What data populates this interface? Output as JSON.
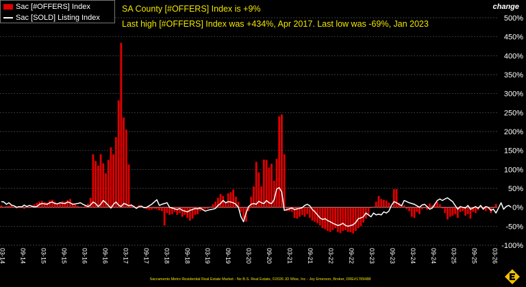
{
  "legend": {
    "offers_label": "Sac [#OFFERS] Index",
    "sold_label": "Sac [SOLD] Listing Index"
  },
  "annotations": {
    "line1": "SA County [#OFFERS] Index is +9%",
    "line2": "Last high [#OFFERS] Index was +434%, Apr 2017. Last low was -69%, Jan 2023"
  },
  "axis_title": "change",
  "footer": "Sacramento Metro Residential Real Estate Market - No B.S. Real Estate, ©2026 JD Wise, Inc - Joy Emerson, Broker, DRE#1789488",
  "colors": {
    "bars": "#e00000",
    "line": "#ffffff",
    "annotation": "#f2e600",
    "background": "#000000"
  },
  "chart_data": {
    "type": "bar",
    "y_ticks": [
      "500%",
      "450%",
      "400%",
      "350%",
      "300%",
      "250%",
      "200%",
      "150%",
      "100%",
      "50%",
      "0%",
      "-50%",
      "-100%"
    ],
    "ylim": [
      -100,
      500
    ],
    "x_tick_labels": [
      "03-14",
      "09-14",
      "03-15",
      "09-15",
      "03-16",
      "09-16",
      "03-17",
      "09-17",
      "03-18",
      "09-18",
      "03-19",
      "09-19",
      "03-20",
      "09-20",
      "03-21",
      "09-21",
      "03-22",
      "09-22",
      "03-23",
      "09-23",
      "03-24",
      "09-24",
      "03-25",
      "09-25",
      "03-26"
    ],
    "series": [
      {
        "name": "Sac [#OFFERS] Index",
        "type": "bar",
        "values": [
          5,
          2,
          3,
          4,
          6,
          1,
          -3,
          -2,
          2,
          -4,
          1,
          -2,
          3,
          8,
          12,
          15,
          17,
          14,
          12,
          18,
          20,
          15,
          11,
          13,
          16,
          15,
          19,
          22,
          11,
          8,
          4,
          2,
          1,
          5,
          10,
          25,
          140,
          122,
          110,
          140,
          116,
          90,
          125,
          158,
          140,
          185,
          282,
          434,
          237,
          205,
          113,
          8,
          4,
          2,
          6,
          1,
          -2,
          -5,
          -7,
          -6,
          -4,
          -5,
          -8,
          -10,
          -48,
          -15,
          -20,
          -18,
          -12,
          -20,
          -15,
          -25,
          -20,
          -28,
          -35,
          -30,
          -20,
          -18,
          -10,
          -8,
          -5,
          -4,
          2,
          8,
          15,
          25,
          35,
          30,
          12,
          37,
          40,
          47,
          28,
          15,
          -12,
          -30,
          -38,
          -10,
          28,
          55,
          120,
          92,
          55,
          126,
          125,
          105,
          115,
          70,
          128,
          240,
          245,
          140,
          -10,
          -10,
          -12,
          -28,
          -30,
          -25,
          -20,
          -25,
          -18,
          -28,
          -35,
          -38,
          -42,
          -48,
          -55,
          -58,
          -62,
          -65,
          -60,
          -55,
          -65,
          -68,
          -62,
          -60,
          -65,
          -66,
          -69,
          -62,
          -55,
          -50,
          -40,
          -30,
          -20,
          -2,
          2,
          15,
          30,
          22,
          20,
          18,
          12,
          2,
          48,
          48,
          12,
          8,
          6,
          -5,
          -10,
          -25,
          -28,
          -12,
          -18,
          -5,
          -2,
          -6,
          10,
          5,
          10,
          14,
          8,
          -3,
          -15,
          -32,
          -25,
          -22,
          -18,
          -28,
          -12,
          -10,
          -22,
          -18,
          -30,
          -12,
          -15,
          -8,
          2,
          -5,
          -10,
          -5,
          -15,
          -3,
          9
        ]
      },
      {
        "name": "Sac [SOLD] Listing Index",
        "type": "line",
        "values": [
          15,
          14,
          8,
          12,
          6,
          4,
          0,
          2,
          1,
          6,
          2,
          5,
          3,
          1,
          2,
          8,
          10,
          9,
          8,
          12,
          14,
          10,
          9,
          12,
          11,
          10,
          14,
          12,
          8,
          9,
          10,
          12,
          8,
          5,
          2,
          6,
          14,
          10,
          2,
          8,
          18,
          12,
          5,
          -2,
          8,
          14,
          6,
          2,
          10,
          8,
          4,
          6,
          2,
          -3,
          2,
          3,
          -1,
          0,
          4,
          8,
          14,
          20,
          5,
          8,
          10,
          12,
          0,
          -2,
          -4,
          -6,
          -3,
          -8,
          -10,
          -12,
          -8,
          -6,
          -3,
          -4,
          -2,
          -6,
          -10,
          -8,
          -6,
          -5,
          -3,
          5,
          10,
          18,
          12,
          15,
          14,
          12,
          8,
          0,
          -25,
          -38,
          -15,
          2,
          8,
          10,
          8,
          16,
          12,
          10,
          18,
          12,
          10,
          20,
          48,
          52,
          40,
          -8,
          -6,
          -4,
          -2,
          -6,
          -4,
          -3,
          -1,
          5,
          8,
          4,
          -6,
          -12,
          -20,
          -28,
          -32,
          -30,
          -35,
          -38,
          -42,
          -45,
          -48,
          -46,
          -42,
          -48,
          -50,
          -48,
          -46,
          -40,
          -30,
          -28,
          -25,
          -15,
          -20,
          -25,
          -15,
          -20,
          -18,
          -20,
          -12,
          -15,
          -10,
          5,
          15,
          12,
          8,
          4,
          18,
          15,
          12,
          10,
          8,
          4,
          0,
          6,
          8,
          2,
          -5,
          -2,
          8,
          18,
          22,
          18,
          22,
          25,
          20,
          15,
          5,
          -5,
          2,
          0,
          -2,
          5,
          -5,
          -2,
          2,
          -3,
          5,
          -5,
          2,
          0,
          -8,
          -5,
          -15,
          -2,
          12,
          -5,
          2,
          5,
          0
        ]
      }
    ]
  }
}
